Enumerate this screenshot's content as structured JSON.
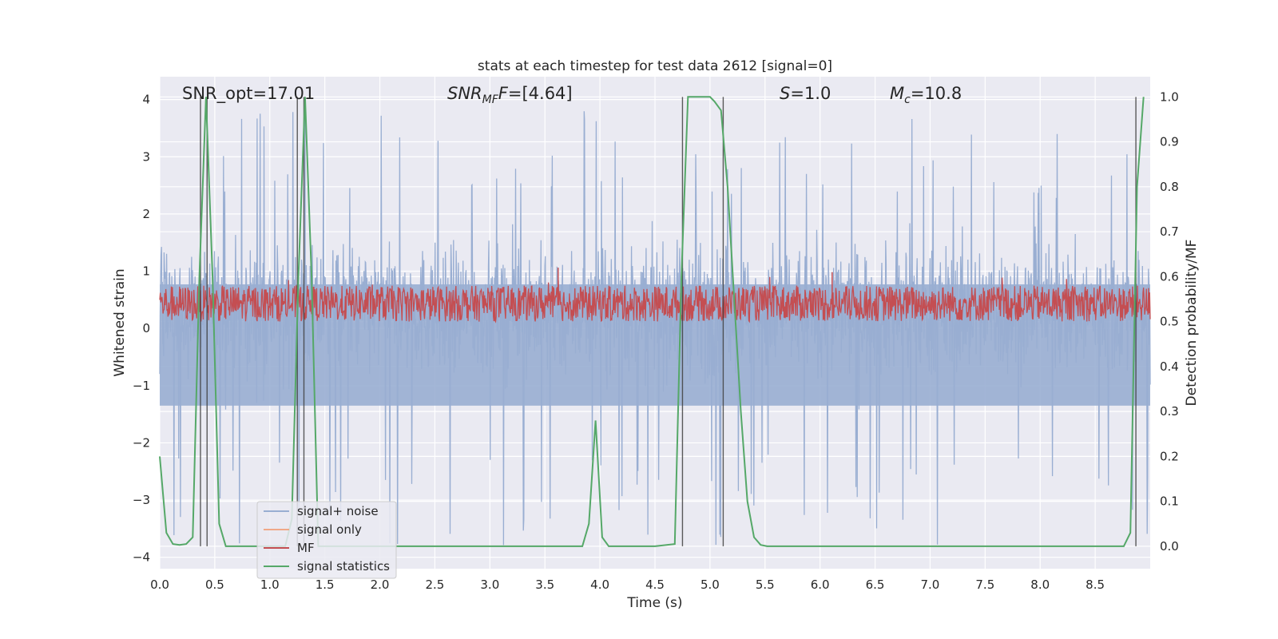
{
  "chart_data": {
    "type": "line",
    "title": "stats at each timestep for test data 2612 [signal=0]",
    "xlabel": "Time (s)",
    "ylabel": "Whitened strain",
    "y2label": "Detection probability/MF",
    "xlim": [
      0.0,
      9.0
    ],
    "ylim": [
      -4.2,
      4.4
    ],
    "y2lim": [
      -0.05,
      1.045
    ],
    "xticks": [
      "0.0",
      "0.5",
      "1.0",
      "1.5",
      "2.0",
      "2.5",
      "3.0",
      "3.5",
      "4.0",
      "4.5",
      "5.0",
      "5.5",
      "6.0",
      "6.5",
      "7.0",
      "7.5",
      "8.0",
      "8.5"
    ],
    "xtick_values": [
      0.0,
      0.5,
      1.0,
      1.5,
      2.0,
      2.5,
      3.0,
      3.5,
      4.0,
      4.5,
      5.0,
      5.5,
      6.0,
      6.5,
      7.0,
      7.5,
      8.0,
      8.5
    ],
    "yticks": [
      "−4",
      "−3",
      "−2",
      "−1",
      "0",
      "1",
      "2",
      "3",
      "4"
    ],
    "ytick_values": [
      -4,
      -3,
      -2,
      -1,
      0,
      1,
      2,
      3,
      4
    ],
    "y2ticks": [
      "0.0",
      "0.1",
      "0.2",
      "0.3",
      "0.4",
      "0.5",
      "0.6",
      "0.7",
      "0.8",
      "0.9",
      "1.0"
    ],
    "y2tick_values": [
      0.0,
      0.1,
      0.2,
      0.3,
      0.4,
      0.5,
      0.6,
      0.7,
      0.8,
      0.9,
      1.0
    ],
    "grid": true,
    "legend_position": "lower-left",
    "annotations": {
      "snr_opt": "SNR_opt=17.01",
      "snr_mf_main": "SNR",
      "snr_mf_sub": "MF",
      "snr_mf_rest": "=[4.64]",
      "s_main": "S",
      "s_rest": "=1.0",
      "mc_main": "M",
      "mc_sub": "c",
      "mc_rest": "=10.8"
    },
    "vertical_lines_x": [
      0.37,
      0.43,
      1.25,
      1.31,
      4.75,
      5.12,
      8.87
    ],
    "series": [
      {
        "name": "signal+ noise",
        "color": "#99aed2",
        "axis": "left",
        "style": "dense noise",
        "envelope_typical": [
          -1.5,
          2.2
        ],
        "envelope_peaks": [
          -3.9,
          4.0
        ]
      },
      {
        "name": "signal only",
        "color": "#f0a888",
        "axis": "left",
        "values": []
      },
      {
        "name": "MF",
        "color": "#c44e52",
        "axis": "right",
        "style": "dense noise",
        "envelope": [
          0.5,
          0.58
        ],
        "spikes": [
          [
            3.62,
            0.62
          ],
          [
            6.11,
            0.61
          ]
        ]
      },
      {
        "name": "signal statistics",
        "color": "#55a868",
        "axis": "right",
        "x": [
          0.0,
          0.06,
          0.12,
          0.18,
          0.24,
          0.3,
          0.36,
          0.42,
          0.48,
          0.54,
          0.6,
          0.9,
          1.14,
          1.2,
          1.26,
          1.32,
          1.38,
          1.44,
          1.5,
          1.8,
          2.4,
          3.0,
          3.6,
          3.84,
          3.9,
          3.96,
          4.02,
          4.08,
          4.14,
          4.5,
          4.68,
          4.74,
          4.8,
          4.86,
          4.92,
          5.0,
          5.04,
          5.1,
          5.16,
          5.22,
          5.28,
          5.34,
          5.4,
          5.46,
          5.52,
          6.0,
          7.0,
          8.0,
          8.76,
          8.82,
          8.88,
          8.94
        ],
        "y": [
          0.2,
          0.03,
          0.005,
          0.003,
          0.005,
          0.02,
          0.6,
          1.0,
          0.6,
          0.05,
          0.0,
          0.0,
          0.0,
          0.06,
          0.6,
          1.0,
          0.6,
          0.0,
          0.0,
          0.0,
          0.0,
          0.0,
          0.0,
          0.0,
          0.05,
          0.28,
          0.02,
          0.0,
          0.0,
          0.0,
          0.005,
          0.6,
          1.0,
          1.0,
          1.0,
          1.0,
          0.99,
          0.97,
          0.8,
          0.55,
          0.3,
          0.1,
          0.02,
          0.003,
          0.0,
          0.0,
          0.0,
          0.0,
          0.0,
          0.03,
          0.8,
          1.0
        ]
      }
    ]
  }
}
